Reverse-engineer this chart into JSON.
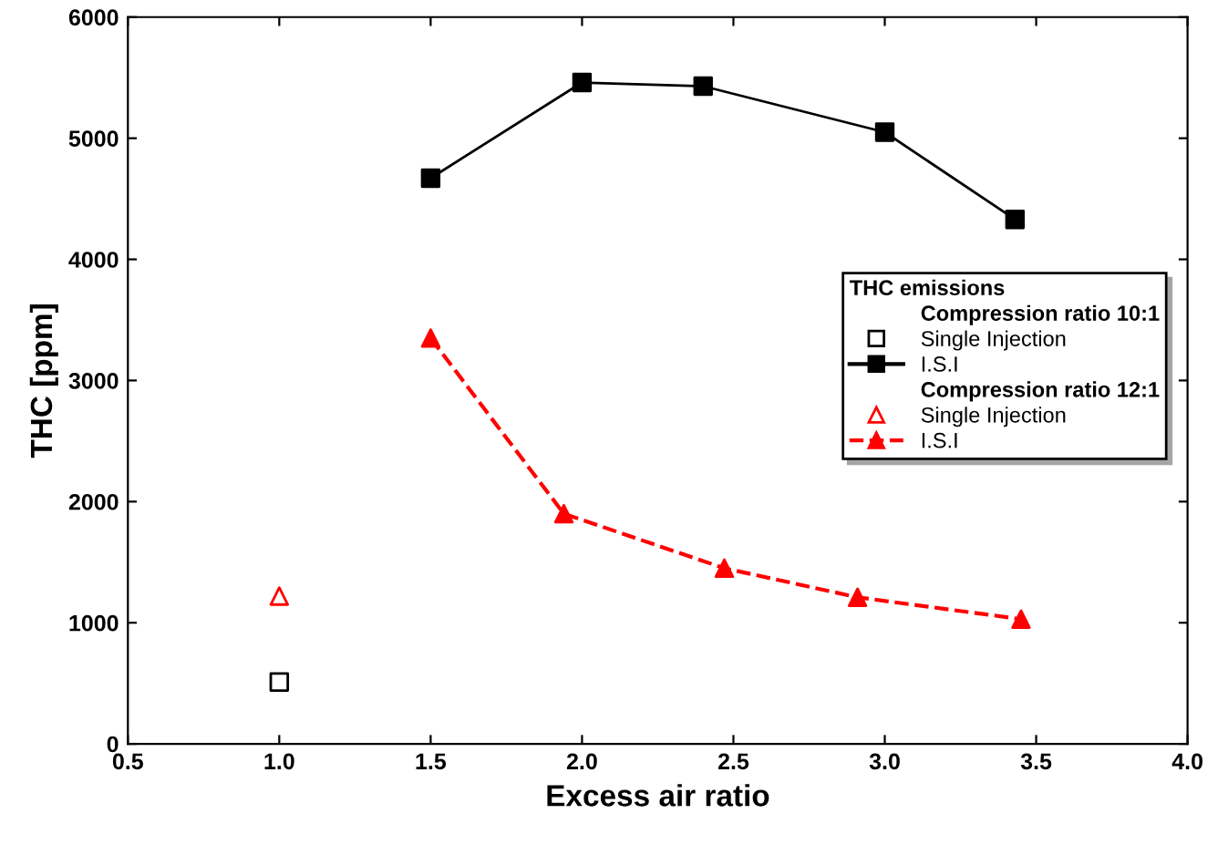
{
  "chart_data": {
    "type": "line",
    "xlabel": "Excess air ratio",
    "ylabel": "THC [ppm]",
    "legend_title": "THC emissions",
    "annotations": [
      "Compression ratio 10:1",
      "Compression ratio 12:1"
    ],
    "series": [
      {
        "name": "Single Injection",
        "type": "scatter",
        "color": "#000000",
        "marker": "square",
        "x": [
          1.0
        ],
        "values": [
          510
        ]
      },
      {
        "name": "I.S.I",
        "color": "#000000",
        "marker": "square",
        "line_style": "solid",
        "x": [
          1.5,
          2.0,
          2.4,
          3.0,
          3.43
        ],
        "values": [
          4670,
          5460,
          5430,
          5050,
          4330
        ]
      },
      {
        "name": "Single Injection",
        "type": "scatter",
        "color": "#ff0000",
        "marker": "triangle",
        "x": [
          1.0
        ],
        "values": [
          1220
        ]
      },
      {
        "name": "I.S.I",
        "color": "#ff0000",
        "marker": "triangle",
        "line_style": "dashed",
        "x": [
          1.5,
          1.94,
          2.47,
          2.91,
          3.45
        ],
        "values": [
          3350,
          1900,
          1450,
          1210,
          1030
        ]
      }
    ],
    "xlim": [
      0.5,
      4.0
    ],
    "xticks": [
      0.5,
      {
        "value": 1,
        "label": "1.0"
      },
      1.5,
      {
        "value": 2,
        "label": "2.0"
      },
      2.5,
      {
        "value": 3,
        "label": "3.0"
      },
      3.5,
      {
        "value": 4,
        "label": "4.0"
      }
    ],
    "ylim": [
      0,
      6000
    ],
    "yticks": [
      0,
      1000,
      2000,
      3000,
      4000,
      5000,
      6000
    ],
    "grid": false,
    "legend": "right"
  }
}
